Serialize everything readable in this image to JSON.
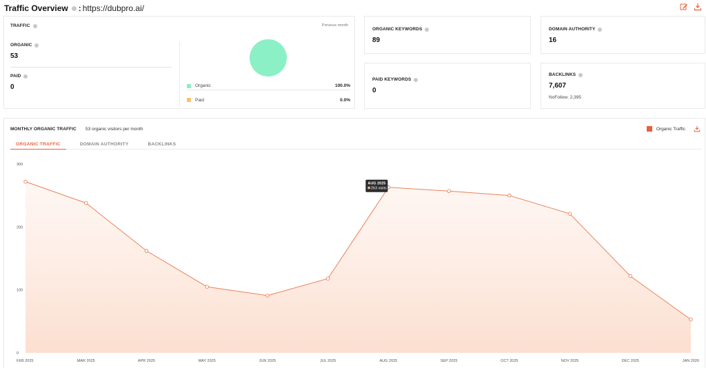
{
  "header": {
    "title": "Traffic Overview",
    "separator": ":",
    "url": "https://dubpro.ai/"
  },
  "toolbar": {
    "icons": [
      "edit-chart-icon",
      "download-icon"
    ]
  },
  "traffic": {
    "label": "TRAFFIC",
    "period": "Previous month",
    "organic_label": "ORGANIC",
    "organic_value": "53",
    "paid_label": "PAID",
    "paid_value": "0",
    "legend": [
      {
        "name": "Organic",
        "pct": "100.0%",
        "color": "#8bf0c5"
      },
      {
        "name": "Paid",
        "pct": "0.0%",
        "color": "#f6c36b"
      }
    ]
  },
  "organic_keywords": {
    "label": "ORGANIC KEYWORDS",
    "value": "89"
  },
  "domain_authority": {
    "label": "DOMAIN AUTHORITY",
    "value": "16"
  },
  "paid_keywords": {
    "label": "PAID KEYWORDS",
    "value": "0"
  },
  "backlinks": {
    "label": "BACKLINKS",
    "value": "7,607",
    "nofollow": "NoFollow: 2,395"
  },
  "monthly": {
    "title": "MONTHLY ORGANIC TRAFFIC",
    "subtitle": "53 organic visitors per month",
    "legend_label": "Organic Traffic",
    "tabs": [
      "ORGANIC TRAFFIC",
      "DOMAIN AUTHORITY",
      "BACKLINKS"
    ],
    "tooltip": {
      "title": "AUG 2025",
      "text": "263 visits"
    }
  },
  "chart_data": {
    "type": "area",
    "categories": [
      "FEB 2025",
      "MAR 2025",
      "APR 2025",
      "MAY 2025",
      "JUN 2025",
      "JUL 2025",
      "AUG 2025",
      "SEP 2025",
      "OCT 2025",
      "NOV 2025",
      "DEC 2025",
      "JAN 2026"
    ],
    "series": [
      {
        "name": "Organic Traffic",
        "values": [
          272,
          238,
          162,
          105,
          91,
          118,
          263,
          257,
          250,
          221,
          122,
          53
        ]
      }
    ],
    "ylim": [
      0,
      300
    ],
    "yticks": [
      0,
      100,
      200,
      300
    ],
    "color": "#e8825a",
    "grid": false,
    "legend": "top-right"
  }
}
